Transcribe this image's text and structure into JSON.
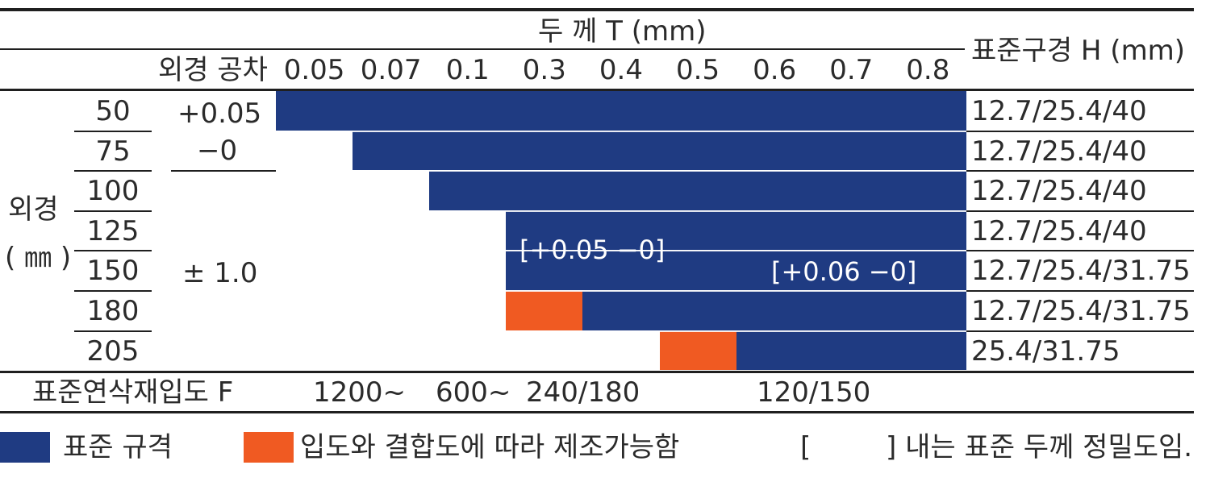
{
  "colors": {
    "standard": "#1f3b82",
    "special": "#f05a22",
    "text": "#2b2b2b",
    "overlay_text": "#ffffff"
  },
  "header": {
    "thickness_title": "두 께 T (mm)",
    "tolerance_header": "외경 공차",
    "bore_header": "표준구경 H (mm)",
    "thickness_values": [
      "0.05",
      "0.07",
      "0.1",
      "0.3",
      "0.4",
      "0.5",
      "0.6",
      "0.7",
      "0.8"
    ]
  },
  "side": {
    "outer_label": "외경",
    "unit_label": "( ㎜ )"
  },
  "tolerances": {
    "top_plus": "+0.05",
    "top_minus": "−0",
    "lower": "± 1.0"
  },
  "rows": [
    {
      "diameter": "50",
      "bore": "12.7/25.4/40",
      "start_index": 0,
      "special_cells": 0
    },
    {
      "diameter": "75",
      "bore": "12.7/25.4/40",
      "start_index": 1,
      "special_cells": 0
    },
    {
      "diameter": "100",
      "bore": "12.7/25.4/40",
      "start_index": 2,
      "special_cells": 0
    },
    {
      "diameter": "125",
      "bore": "12.7/25.4/40",
      "start_index": 3,
      "special_cells": 0
    },
    {
      "diameter": "150",
      "bore": "12.7/25.4/31.75",
      "start_index": 3,
      "special_cells": 0
    },
    {
      "diameter": "180",
      "bore": "12.7/25.4/31.75",
      "start_index": 3,
      "special_cells": 1
    },
    {
      "diameter": "205",
      "bore": "25.4/31.75",
      "start_index": 5,
      "special_cells": 1
    }
  ],
  "overlays": {
    "precision_a": "[+0.05 −0]",
    "precision_b": "[+0.06 −0]"
  },
  "grit": {
    "label": "표준연삭재입도 F",
    "v1": "1200~",
    "v2": "600~",
    "v3": "240/180",
    "v4": "120/150"
  },
  "legend": {
    "standard": "표준 규격",
    "special": "입도와 결합도에 따라 제조가능함",
    "bracket_open": "[",
    "bracket_close": "] 내는 표준 두께 정밀도임."
  }
}
